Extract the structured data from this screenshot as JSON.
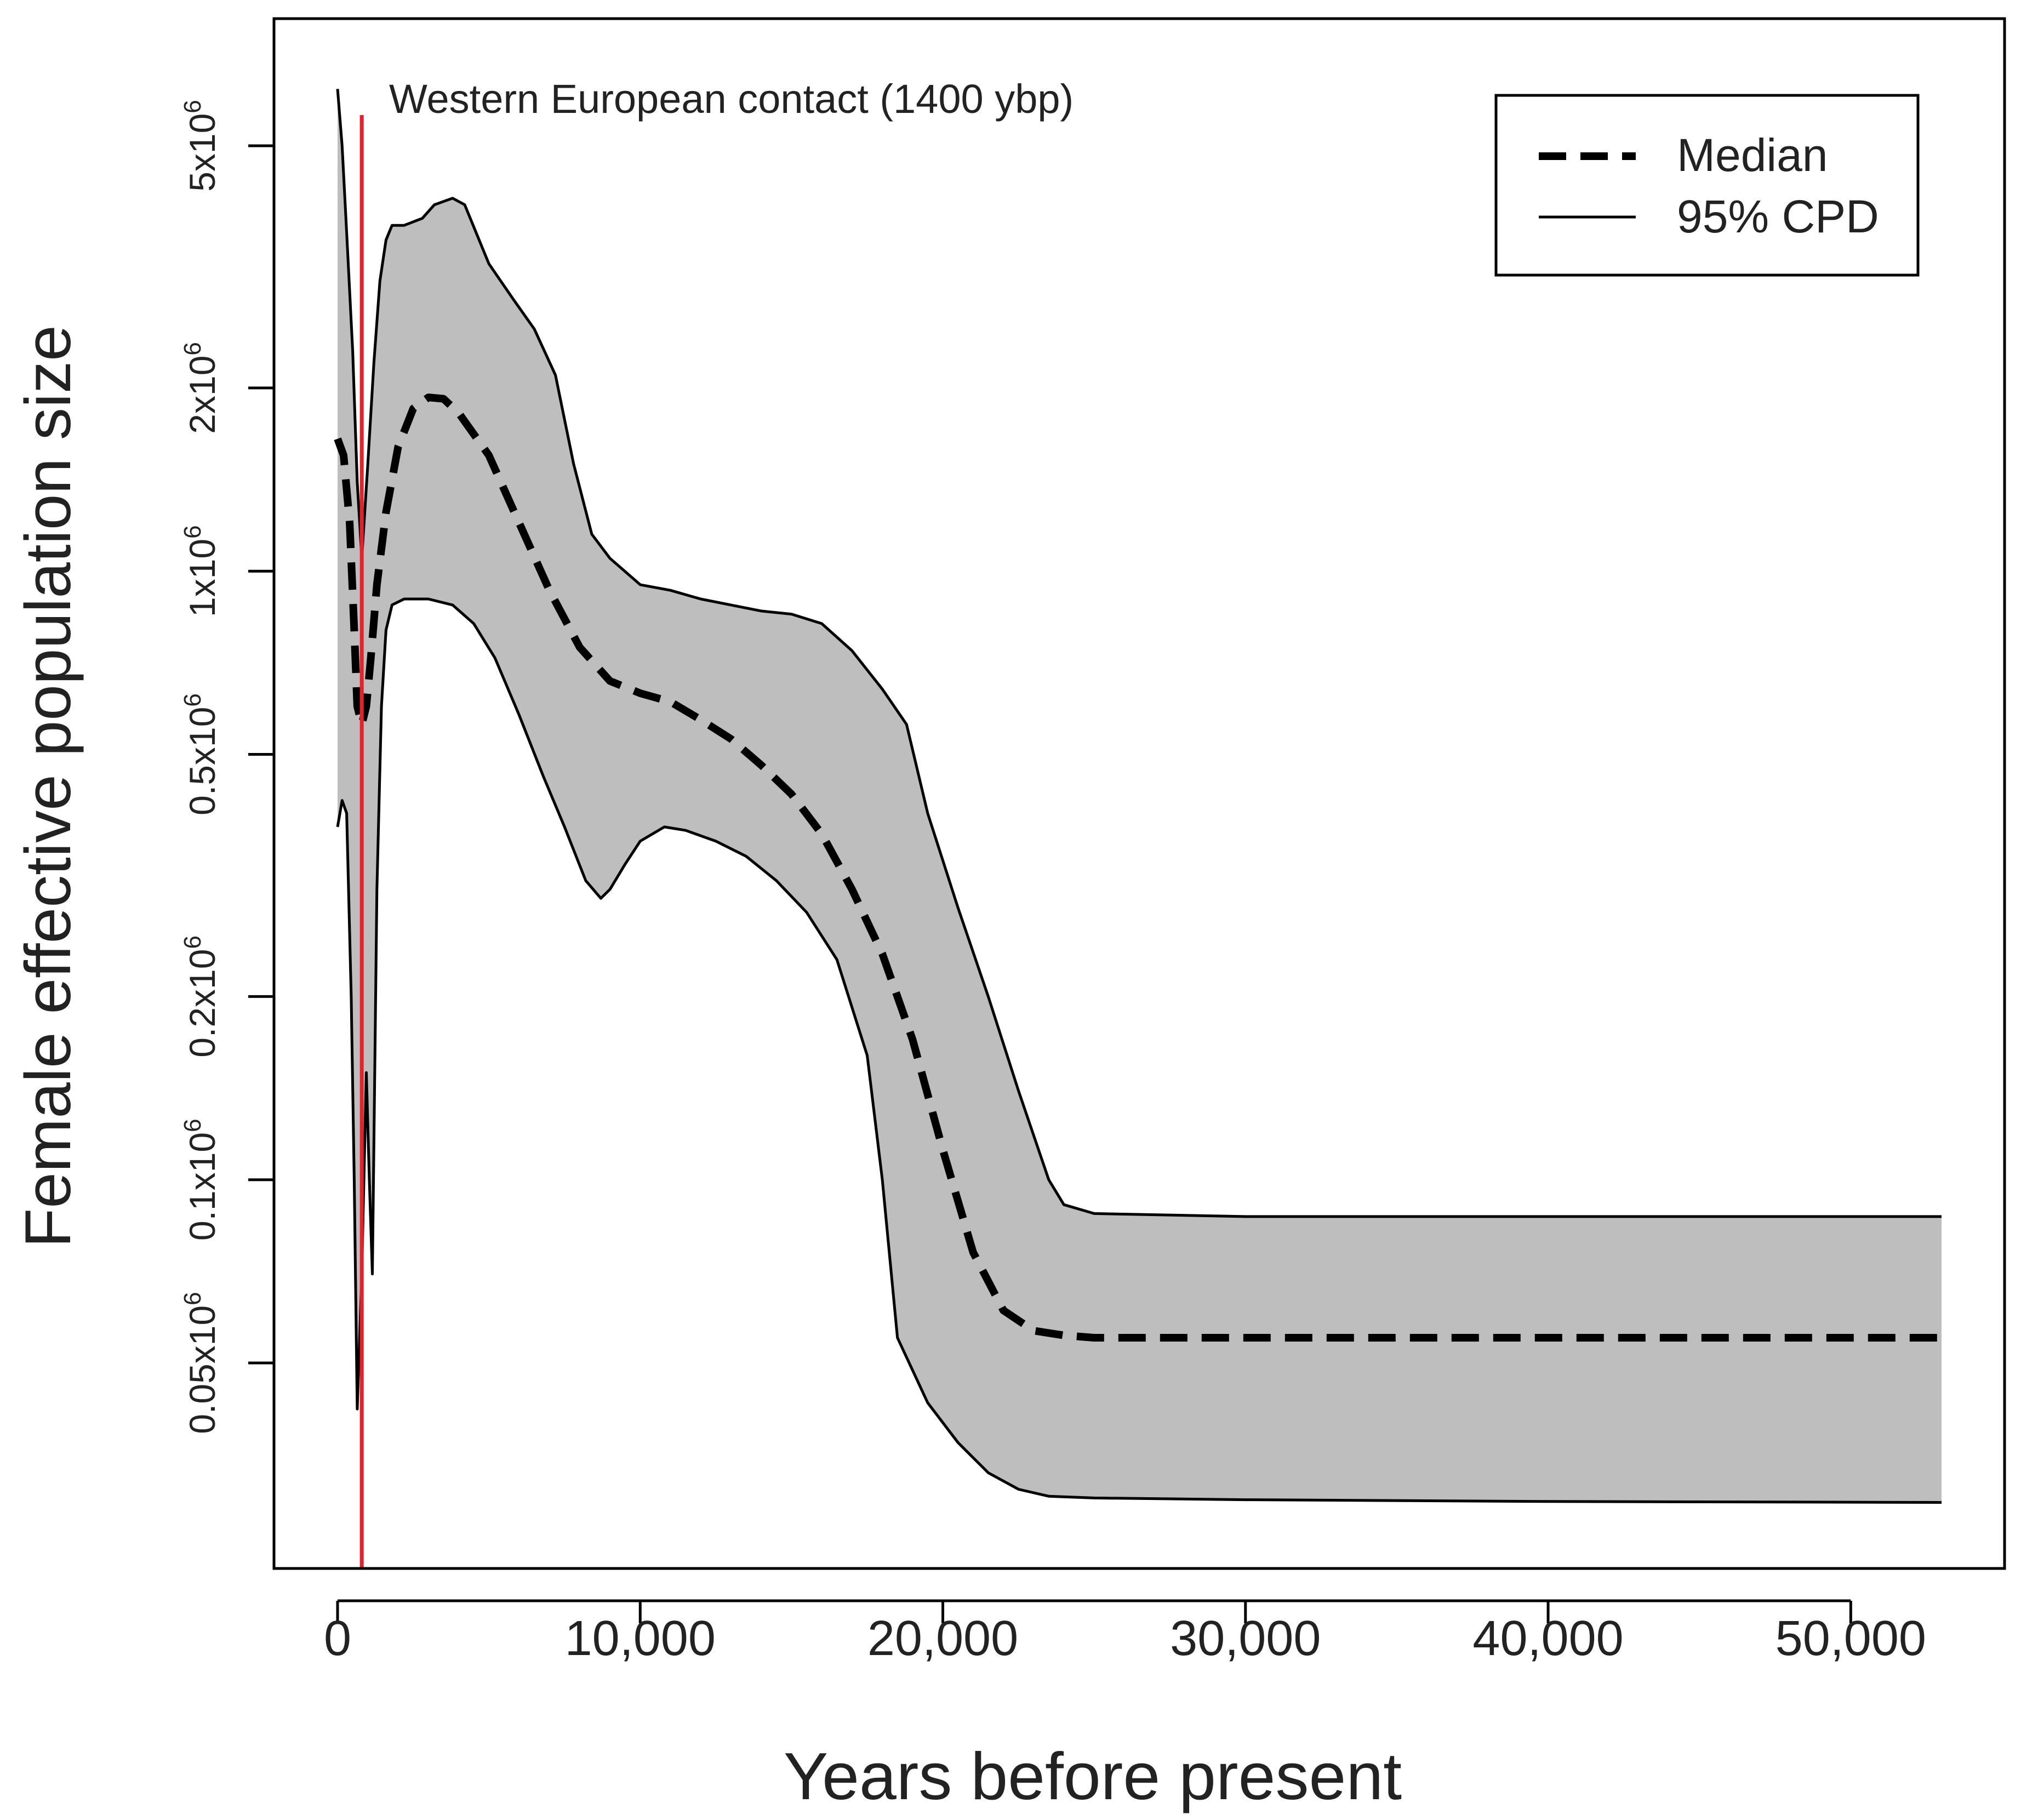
{
  "chart_data": {
    "type": "area",
    "xlabel": "Years before present",
    "ylabel": "Female effective population size",
    "xlim": [
      0,
      53000
    ],
    "ylim": [
      0.025,
      7
    ],
    "ylabel_units": "x10^6 (log scale)",
    "x_ticks": [
      0,
      10000,
      20000,
      30000,
      40000,
      50000
    ],
    "x_tick_labels": [
      "0",
      "10,000",
      "20,000",
      "30,000",
      "40,000",
      "50,000"
    ],
    "y_ticks": [
      0.05,
      0.1,
      0.2,
      0.5,
      1,
      2,
      5
    ],
    "y_tick_labels": [
      {
        "mantissa": "0.05x10",
        "exponent": "6"
      },
      {
        "mantissa": "0.1x10",
        "exponent": "6"
      },
      {
        "mantissa": "0.2x10",
        "exponent": "6"
      },
      {
        "mantissa": "0.5x10",
        "exponent": "6"
      },
      {
        "mantissa": "1x10",
        "exponent": "6"
      },
      {
        "mantissa": "2x10",
        "exponent": "6"
      },
      {
        "mantissa": "5x10",
        "exponent": "6"
      }
    ],
    "legend": {
      "position": "top-right",
      "entries": [
        {
          "label": "Median",
          "style": "dashed"
        },
        {
          "label": "95% CPD",
          "style": "solid"
        }
      ]
    },
    "annotation": {
      "x": 800,
      "label": "Western European contact (1400 ybp)",
      "color": "#e8202a"
    },
    "colors": {
      "band": "#bebebe",
      "line": "#000000",
      "annotation": "#e8202a"
    },
    "series": [
      {
        "name": "Median",
        "points": [
          [
            0,
            1.65
          ],
          [
            200,
            1.55
          ],
          [
            400,
            1.2
          ],
          [
            550,
            0.8
          ],
          [
            650,
            0.6
          ],
          [
            800,
            0.56
          ],
          [
            950,
            0.6
          ],
          [
            1100,
            0.72
          ],
          [
            1300,
            0.95
          ],
          [
            1600,
            1.25
          ],
          [
            2000,
            1.6
          ],
          [
            2500,
            1.85
          ],
          [
            3000,
            1.93
          ],
          [
            3500,
            1.92
          ],
          [
            4000,
            1.82
          ],
          [
            5000,
            1.55
          ],
          [
            6000,
            1.2
          ],
          [
            7000,
            0.93
          ],
          [
            8000,
            0.75
          ],
          [
            9000,
            0.66
          ],
          [
            10000,
            0.63
          ],
          [
            11000,
            0.61
          ],
          [
            12000,
            0.57
          ],
          [
            13000,
            0.53
          ],
          [
            14000,
            0.48
          ],
          [
            15000,
            0.43
          ],
          [
            16000,
            0.37
          ],
          [
            17000,
            0.3
          ],
          [
            18000,
            0.235
          ],
          [
            19000,
            0.17
          ],
          [
            20000,
            0.112
          ],
          [
            21000,
            0.076
          ],
          [
            22000,
            0.061
          ],
          [
            23000,
            0.0565
          ],
          [
            24000,
            0.0555
          ],
          [
            25000,
            0.055
          ],
          [
            30000,
            0.055
          ],
          [
            40000,
            0.055
          ],
          [
            53000,
            0.055
          ]
        ]
      },
      {
        "name": "95% CPD upper",
        "points": [
          [
            0,
            6.2
          ],
          [
            150,
            5.0
          ],
          [
            300,
            3.6
          ],
          [
            500,
            2.3
          ],
          [
            650,
            1.4
          ],
          [
            800,
            1.05
          ],
          [
            1000,
            1.5
          ],
          [
            1200,
            2.2
          ],
          [
            1400,
            3.0
          ],
          [
            1600,
            3.5
          ],
          [
            1800,
            3.7
          ],
          [
            2200,
            3.7
          ],
          [
            2800,
            3.8
          ],
          [
            3200,
            4.0
          ],
          [
            3800,
            4.1
          ],
          [
            4200,
            4.0
          ],
          [
            5000,
            3.2
          ],
          [
            5800,
            2.8
          ],
          [
            6500,
            2.5
          ],
          [
            7200,
            2.1
          ],
          [
            7800,
            1.5
          ],
          [
            8400,
            1.15
          ],
          [
            9000,
            1.05
          ],
          [
            10000,
            0.95
          ],
          [
            11000,
            0.93
          ],
          [
            12000,
            0.9
          ],
          [
            13000,
            0.88
          ],
          [
            14000,
            0.86
          ],
          [
            15000,
            0.85
          ],
          [
            16000,
            0.82
          ],
          [
            17000,
            0.74
          ],
          [
            18000,
            0.64
          ],
          [
            18800,
            0.56
          ],
          [
            19500,
            0.4
          ],
          [
            20500,
            0.28
          ],
          [
            21500,
            0.2
          ],
          [
            22500,
            0.14
          ],
          [
            23500,
            0.1
          ],
          [
            24000,
            0.091
          ],
          [
            25000,
            0.088
          ],
          [
            30000,
            0.087
          ],
          [
            40000,
            0.087
          ],
          [
            53000,
            0.087
          ]
        ]
      },
      {
        "name": "95% CPD lower",
        "points": [
          [
            0,
            0.38
          ],
          [
            150,
            0.42
          ],
          [
            300,
            0.4
          ],
          [
            450,
            0.2
          ],
          [
            550,
            0.1
          ],
          [
            650,
            0.042
          ],
          [
            800,
            0.07
          ],
          [
            950,
            0.15
          ],
          [
            1050,
            0.1
          ],
          [
            1150,
            0.07
          ],
          [
            1300,
            0.3
          ],
          [
            1450,
            0.6
          ],
          [
            1600,
            0.8
          ],
          [
            1800,
            0.88
          ],
          [
            2200,
            0.9
          ],
          [
            3000,
            0.9
          ],
          [
            3800,
            0.88
          ],
          [
            4500,
            0.82
          ],
          [
            5200,
            0.72
          ],
          [
            6000,
            0.58
          ],
          [
            6800,
            0.46
          ],
          [
            7500,
            0.38
          ],
          [
            8200,
            0.31
          ],
          [
            8700,
            0.29
          ],
          [
            9000,
            0.3
          ],
          [
            9500,
            0.33
          ],
          [
            10000,
            0.36
          ],
          [
            10800,
            0.38
          ],
          [
            11500,
            0.375
          ],
          [
            12500,
            0.36
          ],
          [
            13500,
            0.34
          ],
          [
            14500,
            0.31
          ],
          [
            15500,
            0.275
          ],
          [
            16500,
            0.23
          ],
          [
            17500,
            0.16
          ],
          [
            18000,
            0.1
          ],
          [
            18500,
            0.055
          ],
          [
            19500,
            0.043
          ],
          [
            20500,
            0.037
          ],
          [
            21500,
            0.033
          ],
          [
            22500,
            0.031
          ],
          [
            23500,
            0.0302
          ],
          [
            25000,
            0.03
          ],
          [
            30000,
            0.0298
          ],
          [
            40000,
            0.0296
          ],
          [
            53000,
            0.0295
          ]
        ]
      }
    ]
  }
}
